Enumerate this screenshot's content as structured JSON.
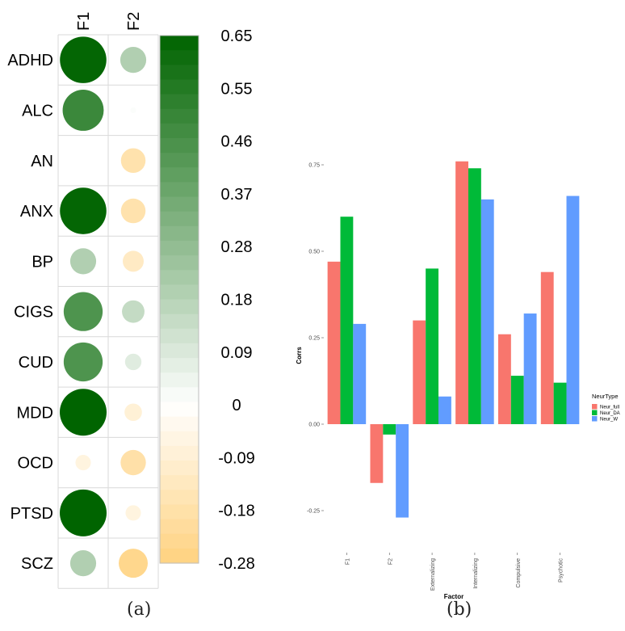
{
  "panel_a": {
    "caption": "(a)",
    "chart_data": {
      "type": "heatmap",
      "columns": [
        "F1",
        "F2"
      ],
      "rows": [
        "ADHD",
        "ALC",
        "AN",
        "ANX",
        "BP",
        "CIGS",
        "CUD",
        "MDD",
        "OCD",
        "PTSD",
        "SCZ"
      ],
      "values": [
        [
          0.64,
          0.2
        ],
        [
          0.5,
          0.01
        ],
        [
          0.0,
          -0.18
        ],
        [
          0.64,
          -0.18
        ],
        [
          0.2,
          -0.13
        ],
        [
          0.45,
          0.15
        ],
        [
          0.45,
          0.08
        ],
        [
          0.65,
          -0.09
        ],
        [
          -0.07,
          -0.19
        ],
        [
          0.65,
          -0.07
        ],
        [
          0.2,
          -0.25
        ]
      ],
      "colorbar": {
        "ticks": [
          "0.65",
          "0.55",
          "0.46",
          "0.37",
          "0.28",
          "0.18",
          "0.09",
          "0",
          "-0.09",
          "-0.18",
          "-0.28"
        ],
        "min": -0.28,
        "max": 0.65,
        "positive_color": "#006400",
        "negative_color": "#FFD27F"
      }
    }
  },
  "panel_b": {
    "caption": "(b)",
    "chart_data": {
      "type": "bar",
      "xlabel": "Factor",
      "ylabel": "Corrs",
      "categories": [
        "F1",
        "F2",
        "Externalizing",
        "Internalizing",
        "Compulsive",
        "Psychotic"
      ],
      "y_ticks": [
        "0.75",
        "0.50",
        "0.25",
        "0.00",
        "-0.25"
      ],
      "ylim": [
        -0.3,
        0.8
      ],
      "legend": {
        "title": "NeurType",
        "position": "right"
      },
      "series": [
        {
          "name": "Neur_full",
          "color": "#F8766D",
          "values": [
            0.47,
            -0.17,
            0.3,
            0.76,
            0.26,
            0.44
          ]
        },
        {
          "name": "Neur_DA",
          "color": "#00BA38",
          "values": [
            0.6,
            -0.03,
            0.45,
            0.74,
            0.14,
            0.12
          ]
        },
        {
          "name": "Neur_W",
          "color": "#619CFF",
          "values": [
            0.29,
            -0.27,
            0.08,
            0.65,
            0.32,
            0.66
          ]
        }
      ]
    }
  }
}
